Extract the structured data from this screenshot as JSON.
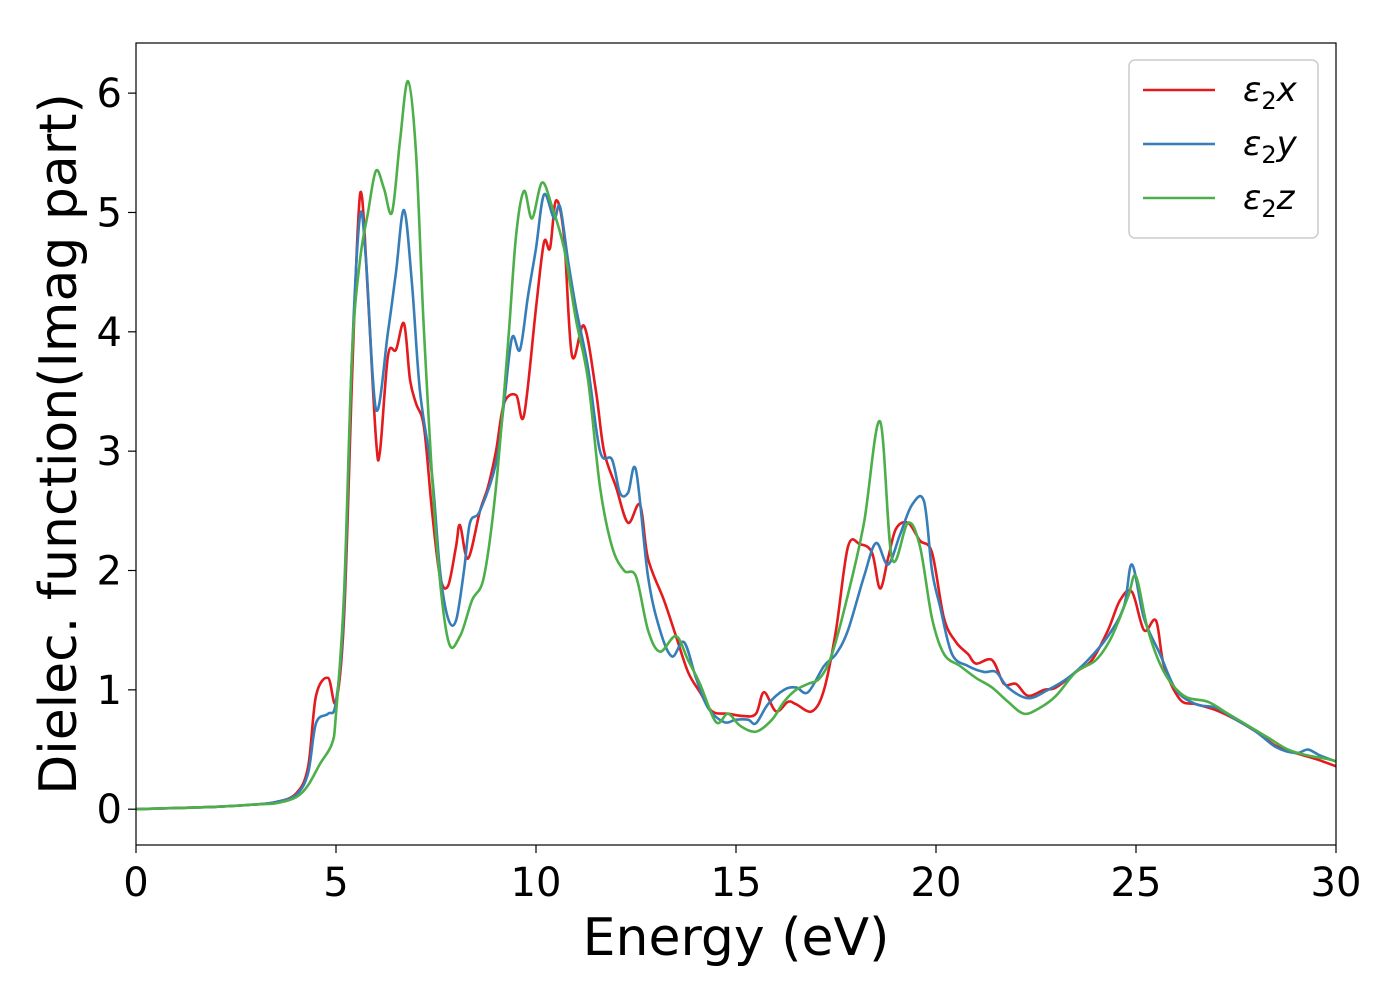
{
  "chart_data": {
    "type": "line",
    "title": "",
    "xlabel": "Energy (eV)",
    "ylabel": "Dielec. function(Imag part)",
    "xlim": [
      0,
      30
    ],
    "ylim": [
      -0.3,
      6.42
    ],
    "xticks": [
      0,
      5,
      10,
      15,
      20,
      25,
      30
    ],
    "yticks": [
      0,
      1,
      2,
      3,
      4,
      5,
      6
    ],
    "grid": false,
    "legend_position": "top-right",
    "series": [
      {
        "name": "ε2x",
        "legend": {
          "base": "ε",
          "sub": "2",
          "tail": "x"
        },
        "color": "#e41a1c",
        "points": [
          [
            0,
            0
          ],
          [
            1,
            0.01
          ],
          [
            2,
            0.02
          ],
          [
            3,
            0.04
          ],
          [
            3.5,
            0.06
          ],
          [
            4,
            0.13
          ],
          [
            4.3,
            0.35
          ],
          [
            4.5,
            0.95
          ],
          [
            4.8,
            1.1
          ],
          [
            5,
            0.9
          ],
          [
            5.2,
            1.6
          ],
          [
            5.4,
            3.6
          ],
          [
            5.55,
            4.9
          ],
          [
            5.65,
            5.13
          ],
          [
            5.8,
            4.3
          ],
          [
            6,
            3.1
          ],
          [
            6.1,
            3.0
          ],
          [
            6.3,
            3.8
          ],
          [
            6.5,
            3.85
          ],
          [
            6.7,
            4.07
          ],
          [
            6.85,
            3.6
          ],
          [
            7,
            3.4
          ],
          [
            7.2,
            3.2
          ],
          [
            7.4,
            2.5
          ],
          [
            7.6,
            1.95
          ],
          [
            7.8,
            1.87
          ],
          [
            8,
            2.2
          ],
          [
            8.1,
            2.38
          ],
          [
            8.3,
            2.1
          ],
          [
            8.6,
            2.5
          ],
          [
            8.8,
            2.7
          ],
          [
            9,
            3.0
          ],
          [
            9.2,
            3.4
          ],
          [
            9.5,
            3.47
          ],
          [
            9.7,
            3.3
          ],
          [
            10,
            4.2
          ],
          [
            10.2,
            4.75
          ],
          [
            10.35,
            4.7
          ],
          [
            10.5,
            5.1
          ],
          [
            10.7,
            4.8
          ],
          [
            10.9,
            3.8
          ],
          [
            11.2,
            4.05
          ],
          [
            11.5,
            3.5
          ],
          [
            11.7,
            3.0
          ],
          [
            12,
            2.7
          ],
          [
            12.3,
            2.4
          ],
          [
            12.6,
            2.55
          ],
          [
            12.8,
            2.1
          ],
          [
            13.2,
            1.75
          ],
          [
            13.5,
            1.45
          ],
          [
            13.8,
            1.15
          ],
          [
            14.1,
            0.98
          ],
          [
            14.4,
            0.82
          ],
          [
            14.8,
            0.8
          ],
          [
            15.2,
            0.78
          ],
          [
            15.5,
            0.8
          ],
          [
            15.7,
            0.98
          ],
          [
            16,
            0.82
          ],
          [
            16.3,
            0.9
          ],
          [
            16.5,
            0.88
          ],
          [
            16.9,
            0.82
          ],
          [
            17.2,
            1.0
          ],
          [
            17.5,
            1.5
          ],
          [
            17.8,
            2.2
          ],
          [
            18.1,
            2.22
          ],
          [
            18.4,
            2.15
          ],
          [
            18.6,
            1.85
          ],
          [
            18.8,
            2.1
          ],
          [
            19,
            2.35
          ],
          [
            19.3,
            2.4
          ],
          [
            19.6,
            2.25
          ],
          [
            19.9,
            2.15
          ],
          [
            20.2,
            1.6
          ],
          [
            20.5,
            1.4
          ],
          [
            20.8,
            1.3
          ],
          [
            21,
            1.22
          ],
          [
            21.4,
            1.25
          ],
          [
            21.7,
            1.05
          ],
          [
            22,
            1.05
          ],
          [
            22.3,
            0.95
          ],
          [
            22.7,
            1.0
          ],
          [
            23,
            1.02
          ],
          [
            23.5,
            1.15
          ],
          [
            23.9,
            1.25
          ],
          [
            24.3,
            1.5
          ],
          [
            24.6,
            1.75
          ],
          [
            24.9,
            1.82
          ],
          [
            25.2,
            1.5
          ],
          [
            25.5,
            1.58
          ],
          [
            25.7,
            1.2
          ],
          [
            26.1,
            0.92
          ],
          [
            26.5,
            0.88
          ],
          [
            27,
            0.83
          ],
          [
            27.5,
            0.75
          ],
          [
            28,
            0.65
          ],
          [
            28.5,
            0.53
          ],
          [
            29,
            0.47
          ],
          [
            29.5,
            0.42
          ],
          [
            30,
            0.36
          ]
        ]
      },
      {
        "name": "ε2y",
        "legend": {
          "base": "ε",
          "sub": "2",
          "tail": "y"
        },
        "color": "#377eb8",
        "points": [
          [
            0,
            0
          ],
          [
            1,
            0.01
          ],
          [
            2,
            0.02
          ],
          [
            3,
            0.04
          ],
          [
            3.5,
            0.06
          ],
          [
            4,
            0.12
          ],
          [
            4.3,
            0.3
          ],
          [
            4.5,
            0.72
          ],
          [
            4.8,
            0.8
          ],
          [
            5,
            0.9
          ],
          [
            5.2,
            1.7
          ],
          [
            5.4,
            3.8
          ],
          [
            5.6,
            4.97
          ],
          [
            5.75,
            4.6
          ],
          [
            6,
            3.35
          ],
          [
            6.3,
            4.0
          ],
          [
            6.5,
            4.5
          ],
          [
            6.7,
            5.02
          ],
          [
            6.9,
            4.4
          ],
          [
            7.1,
            3.5
          ],
          [
            7.4,
            2.8
          ],
          [
            7.6,
            2.0
          ],
          [
            7.8,
            1.6
          ],
          [
            8,
            1.58
          ],
          [
            8.2,
            2.0
          ],
          [
            8.35,
            2.4
          ],
          [
            8.6,
            2.5
          ],
          [
            9,
            2.9
          ],
          [
            9.2,
            3.4
          ],
          [
            9.4,
            3.95
          ],
          [
            9.6,
            3.85
          ],
          [
            9.8,
            4.3
          ],
          [
            10,
            4.7
          ],
          [
            10.2,
            5.15
          ],
          [
            10.45,
            4.95
          ],
          [
            10.6,
            5.05
          ],
          [
            10.8,
            4.6
          ],
          [
            11,
            4.2
          ],
          [
            11.3,
            3.7
          ],
          [
            11.6,
            3.0
          ],
          [
            11.9,
            2.93
          ],
          [
            12.1,
            2.65
          ],
          [
            12.3,
            2.65
          ],
          [
            12.5,
            2.84
          ],
          [
            12.8,
            1.95
          ],
          [
            13.1,
            1.5
          ],
          [
            13.4,
            1.28
          ],
          [
            13.7,
            1.4
          ],
          [
            14,
            1.1
          ],
          [
            14.3,
            0.85
          ],
          [
            14.7,
            0.73
          ],
          [
            15,
            0.75
          ],
          [
            15.3,
            0.75
          ],
          [
            15.5,
            0.72
          ],
          [
            15.8,
            0.88
          ],
          [
            16.2,
            1.0
          ],
          [
            16.5,
            1.02
          ],
          [
            16.8,
            0.98
          ],
          [
            17.2,
            1.2
          ],
          [
            17.5,
            1.3
          ],
          [
            17.8,
            1.5
          ],
          [
            18.2,
            1.95
          ],
          [
            18.5,
            2.23
          ],
          [
            18.8,
            2.05
          ],
          [
            19.1,
            2.3
          ],
          [
            19.4,
            2.55
          ],
          [
            19.7,
            2.58
          ],
          [
            19.9,
            2.0
          ],
          [
            20.1,
            1.7
          ],
          [
            20.4,
            1.3
          ],
          [
            20.8,
            1.2
          ],
          [
            21.2,
            1.15
          ],
          [
            21.5,
            1.15
          ],
          [
            21.8,
            1.02
          ],
          [
            22.3,
            0.93
          ],
          [
            22.8,
            1.0
          ],
          [
            23.3,
            1.1
          ],
          [
            23.8,
            1.25
          ],
          [
            24.3,
            1.45
          ],
          [
            24.7,
            1.7
          ],
          [
            24.9,
            2.05
          ],
          [
            25.2,
            1.6
          ],
          [
            25.6,
            1.3
          ],
          [
            26,
            1.0
          ],
          [
            26.5,
            0.88
          ],
          [
            27,
            0.85
          ],
          [
            27.5,
            0.75
          ],
          [
            28,
            0.65
          ],
          [
            28.5,
            0.52
          ],
          [
            29,
            0.47
          ],
          [
            29.3,
            0.5
          ],
          [
            29.6,
            0.45
          ],
          [
            30,
            0.4
          ]
        ]
      },
      {
        "name": "ε2z",
        "legend": {
          "base": "ε",
          "sub": "2",
          "tail": "z"
        },
        "color": "#4daf4a",
        "points": [
          [
            0,
            0
          ],
          [
            1,
            0.01
          ],
          [
            2,
            0.02
          ],
          [
            3,
            0.04
          ],
          [
            3.5,
            0.05
          ],
          [
            4,
            0.1
          ],
          [
            4.3,
            0.2
          ],
          [
            4.6,
            0.38
          ],
          [
            4.9,
            0.55
          ],
          [
            5,
            0.8
          ],
          [
            5.2,
            1.8
          ],
          [
            5.4,
            3.8
          ],
          [
            5.6,
            4.6
          ],
          [
            5.8,
            5.0
          ],
          [
            6,
            5.35
          ],
          [
            6.2,
            5.2
          ],
          [
            6.4,
            5.0
          ],
          [
            6.6,
            5.6
          ],
          [
            6.8,
            6.1
          ],
          [
            7,
            5.5
          ],
          [
            7.2,
            4.0
          ],
          [
            7.5,
            2.3
          ],
          [
            7.8,
            1.42
          ],
          [
            8.1,
            1.45
          ],
          [
            8.4,
            1.75
          ],
          [
            8.7,
            1.95
          ],
          [
            9,
            2.7
          ],
          [
            9.3,
            3.9
          ],
          [
            9.5,
            4.8
          ],
          [
            9.7,
            5.18
          ],
          [
            9.9,
            4.95
          ],
          [
            10.15,
            5.25
          ],
          [
            10.4,
            5.05
          ],
          [
            10.7,
            4.7
          ],
          [
            11,
            4.1
          ],
          [
            11.3,
            3.6
          ],
          [
            11.6,
            2.7
          ],
          [
            11.9,
            2.2
          ],
          [
            12.2,
            2.0
          ],
          [
            12.5,
            1.95
          ],
          [
            12.8,
            1.5
          ],
          [
            13.1,
            1.32
          ],
          [
            13.5,
            1.45
          ],
          [
            13.8,
            1.25
          ],
          [
            14.1,
            1.05
          ],
          [
            14.5,
            0.73
          ],
          [
            14.8,
            0.8
          ],
          [
            15.1,
            0.7
          ],
          [
            15.5,
            0.65
          ],
          [
            15.9,
            0.75
          ],
          [
            16.2,
            0.9
          ],
          [
            16.5,
            1.0
          ],
          [
            16.8,
            1.05
          ],
          [
            17.1,
            1.1
          ],
          [
            17.4,
            1.3
          ],
          [
            17.8,
            1.8
          ],
          [
            18.2,
            2.4
          ],
          [
            18.6,
            3.25
          ],
          [
            18.9,
            2.1
          ],
          [
            19.3,
            2.4
          ],
          [
            19.6,
            2.2
          ],
          [
            19.9,
            1.6
          ],
          [
            20.2,
            1.3
          ],
          [
            20.6,
            1.2
          ],
          [
            21,
            1.1
          ],
          [
            21.4,
            1.02
          ],
          [
            21.8,
            0.9
          ],
          [
            22.2,
            0.8
          ],
          [
            22.6,
            0.85
          ],
          [
            23,
            0.95
          ],
          [
            23.5,
            1.15
          ],
          [
            24,
            1.25
          ],
          [
            24.4,
            1.45
          ],
          [
            24.8,
            1.78
          ],
          [
            25,
            1.95
          ],
          [
            25.3,
            1.5
          ],
          [
            25.7,
            1.15
          ],
          [
            26.2,
            0.95
          ],
          [
            26.8,
            0.9
          ],
          [
            27.3,
            0.8
          ],
          [
            27.8,
            0.7
          ],
          [
            28.3,
            0.6
          ],
          [
            28.8,
            0.5
          ],
          [
            29.3,
            0.45
          ],
          [
            29.8,
            0.42
          ],
          [
            30,
            0.4
          ]
        ]
      }
    ]
  }
}
